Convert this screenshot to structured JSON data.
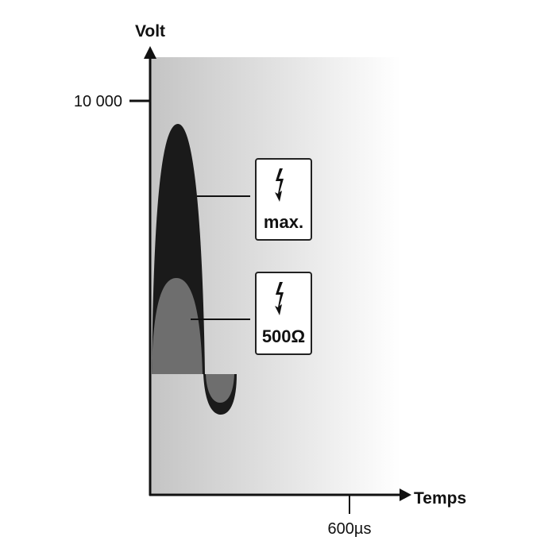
{
  "axes": {
    "y_label": "Volt",
    "x_label": "Temps",
    "y_tick": "10 000",
    "x_tick": "600µs"
  },
  "legend": [
    {
      "icon": "lightning-bolt-icon",
      "label": "max.",
      "color": "#1a1a1a"
    },
    {
      "icon": "lightning-bolt-icon",
      "label": "500Ω",
      "color": "#6e6e6e"
    }
  ],
  "colors": {
    "background_left": "#c4c4c4",
    "background_right": "#ffffff"
  }
}
